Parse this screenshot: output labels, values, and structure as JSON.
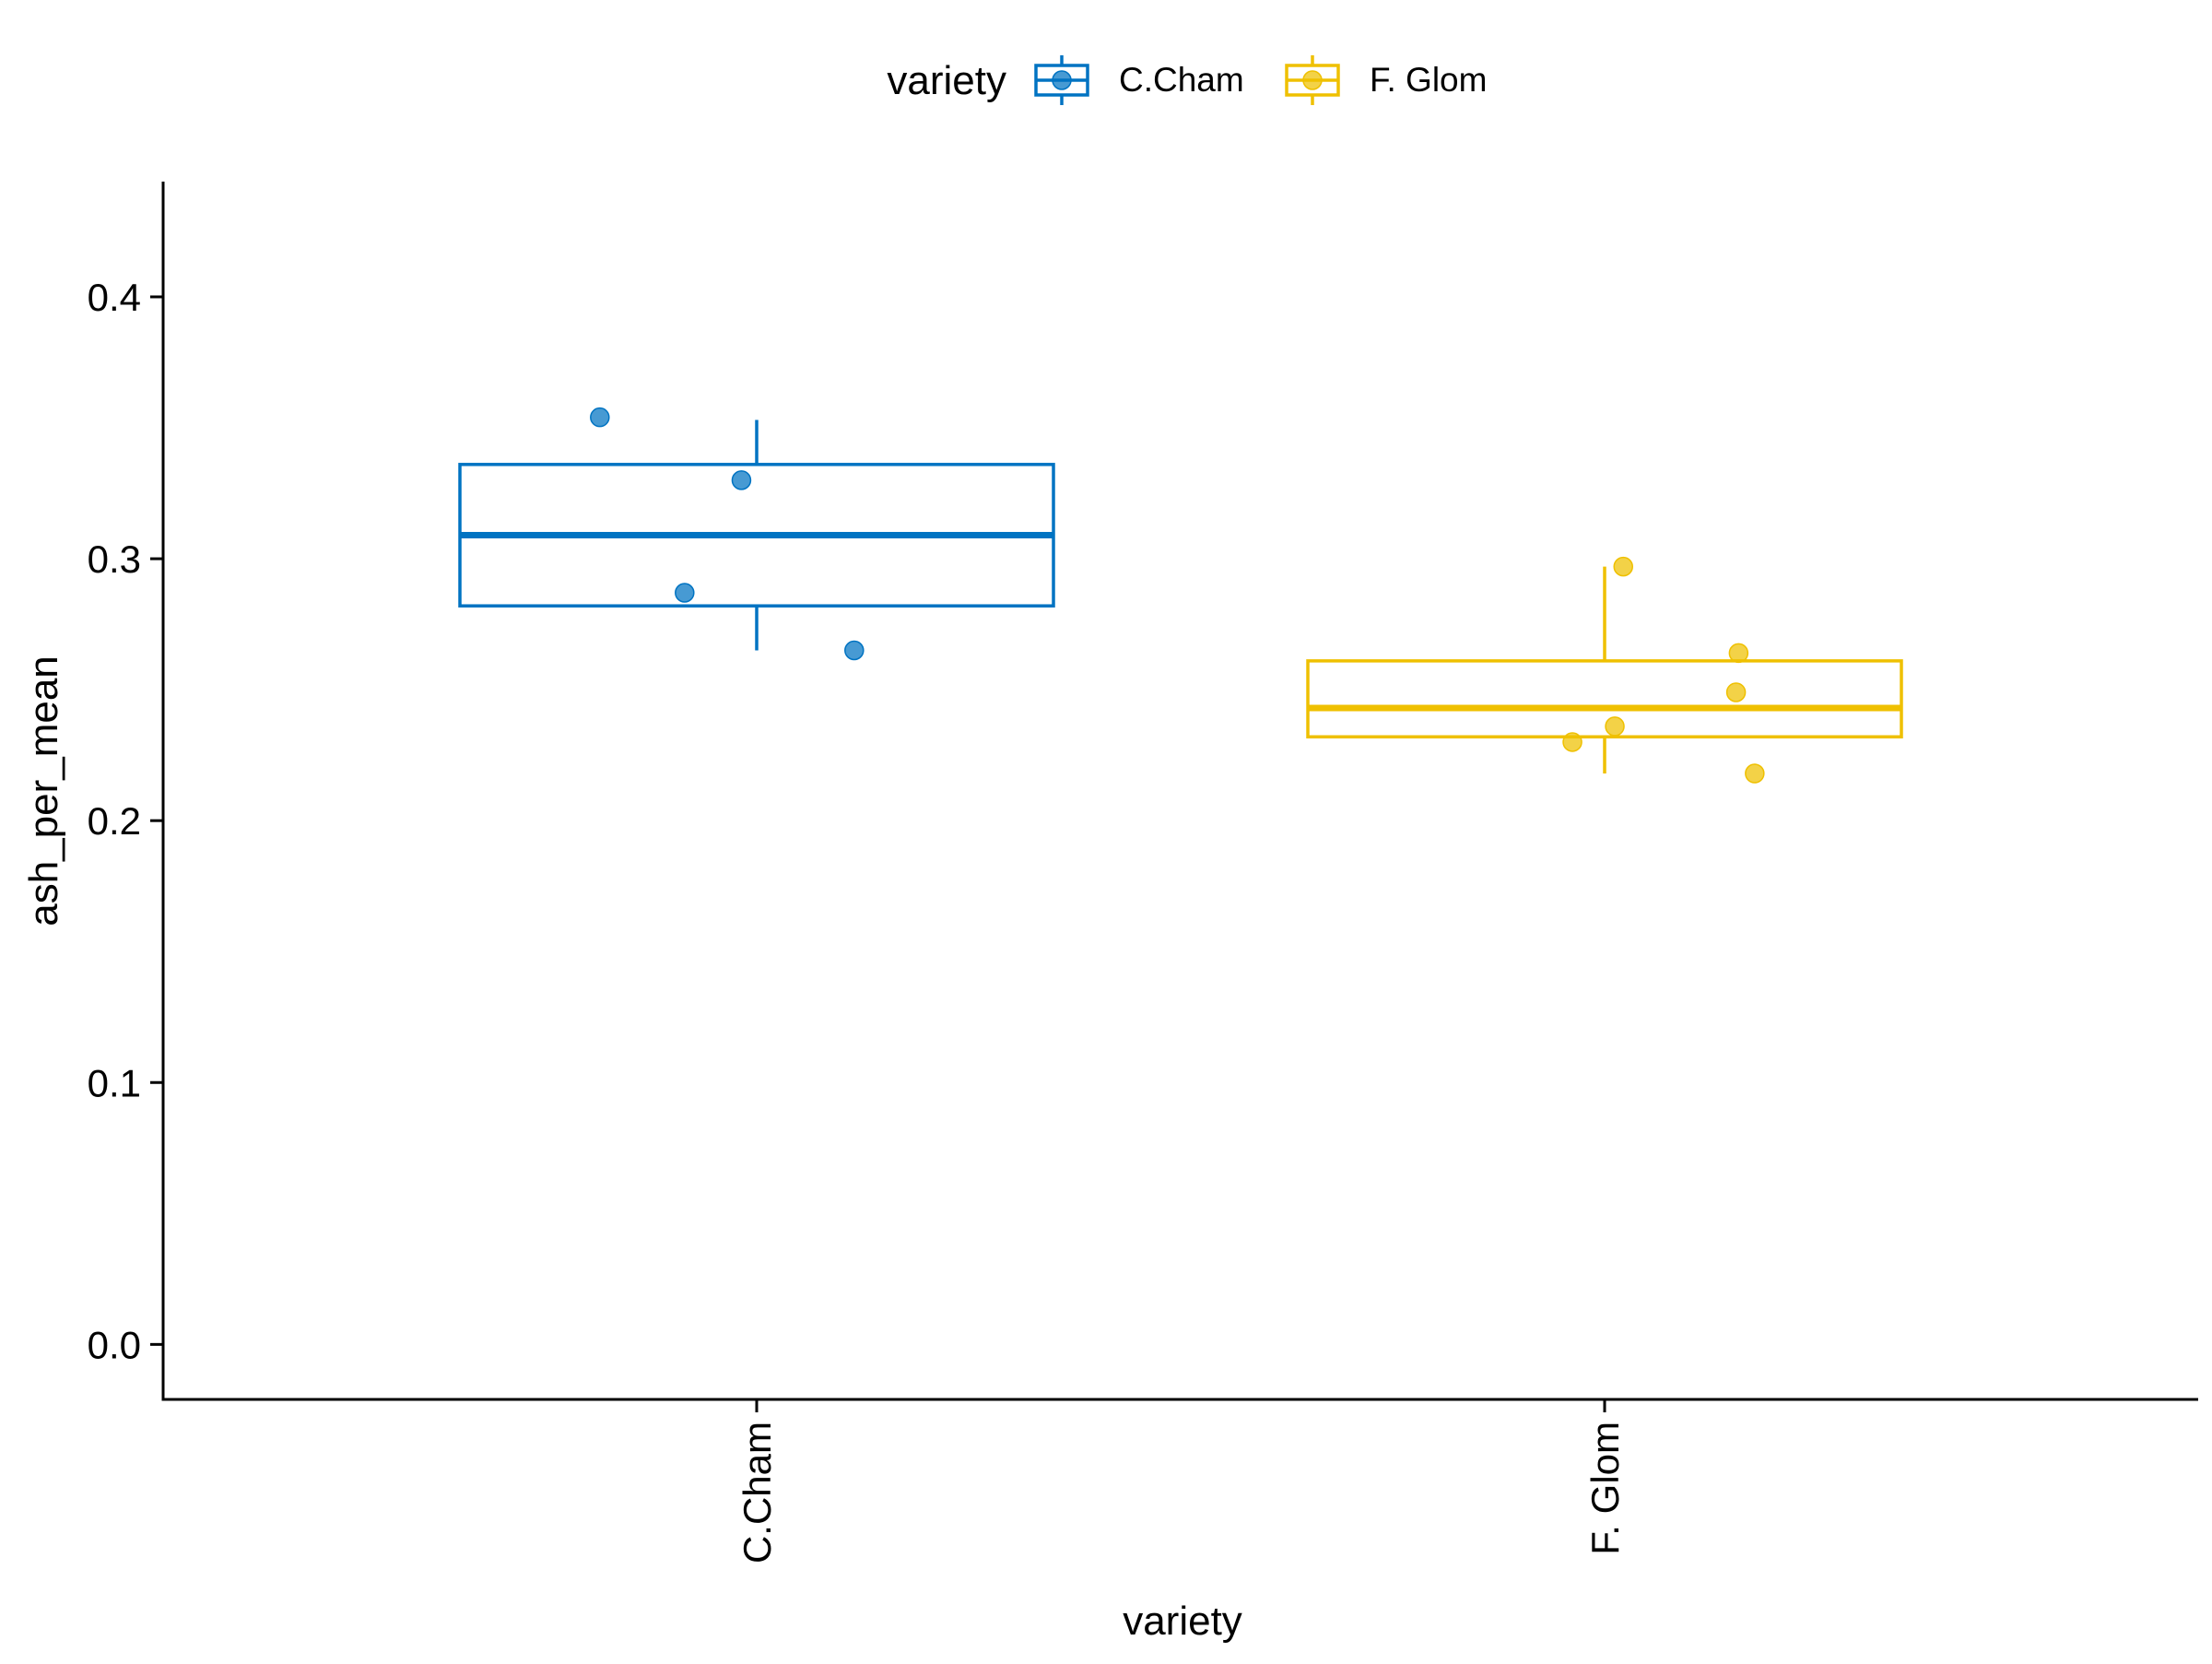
{
  "chart_data": {
    "type": "boxplot",
    "xlabel": "variety",
    "ylabel": "ash_per_mean",
    "categories": [
      "C.Cham",
      "F. Glom"
    ],
    "ylim": [
      -0.021,
      0.444
    ],
    "yticks": [
      0.0,
      0.1,
      0.2,
      0.3,
      0.4
    ],
    "ytick_labels": [
      "0.0",
      "0.1",
      "0.2",
      "0.3",
      "0.4"
    ],
    "grid": false,
    "legend": {
      "title": "variety",
      "placement": "top",
      "entries": [
        "C.Cham",
        "F. Glom"
      ]
    },
    "series": [
      {
        "name": "C.Cham",
        "color": "#0073C2",
        "box": {
          "whisker_low": 0.265,
          "q1": 0.282,
          "median": 0.309,
          "q3": 0.336,
          "whisker_high": 0.353
        },
        "points": [
          {
            "x_offset": -0.185,
            "y": 0.354
          },
          {
            "x_offset": -0.085,
            "y": 0.287
          },
          {
            "x_offset": -0.018,
            "y": 0.33
          },
          {
            "x_offset": 0.115,
            "y": 0.265
          }
        ]
      },
      {
        "name": "F. Glom",
        "color": "#EFC000",
        "box": {
          "whisker_low": 0.218,
          "q1": 0.232,
          "median": 0.243,
          "q3": 0.261,
          "whisker_high": 0.297
        },
        "points": [
          {
            "x_offset": -0.038,
            "y": 0.23
          },
          {
            "x_offset": 0.012,
            "y": 0.236
          },
          {
            "x_offset": 0.022,
            "y": 0.297
          },
          {
            "x_offset": 0.155,
            "y": 0.249
          },
          {
            "x_offset": 0.158,
            "y": 0.264
          },
          {
            "x_offset": 0.177,
            "y": 0.218
          }
        ]
      }
    ]
  }
}
